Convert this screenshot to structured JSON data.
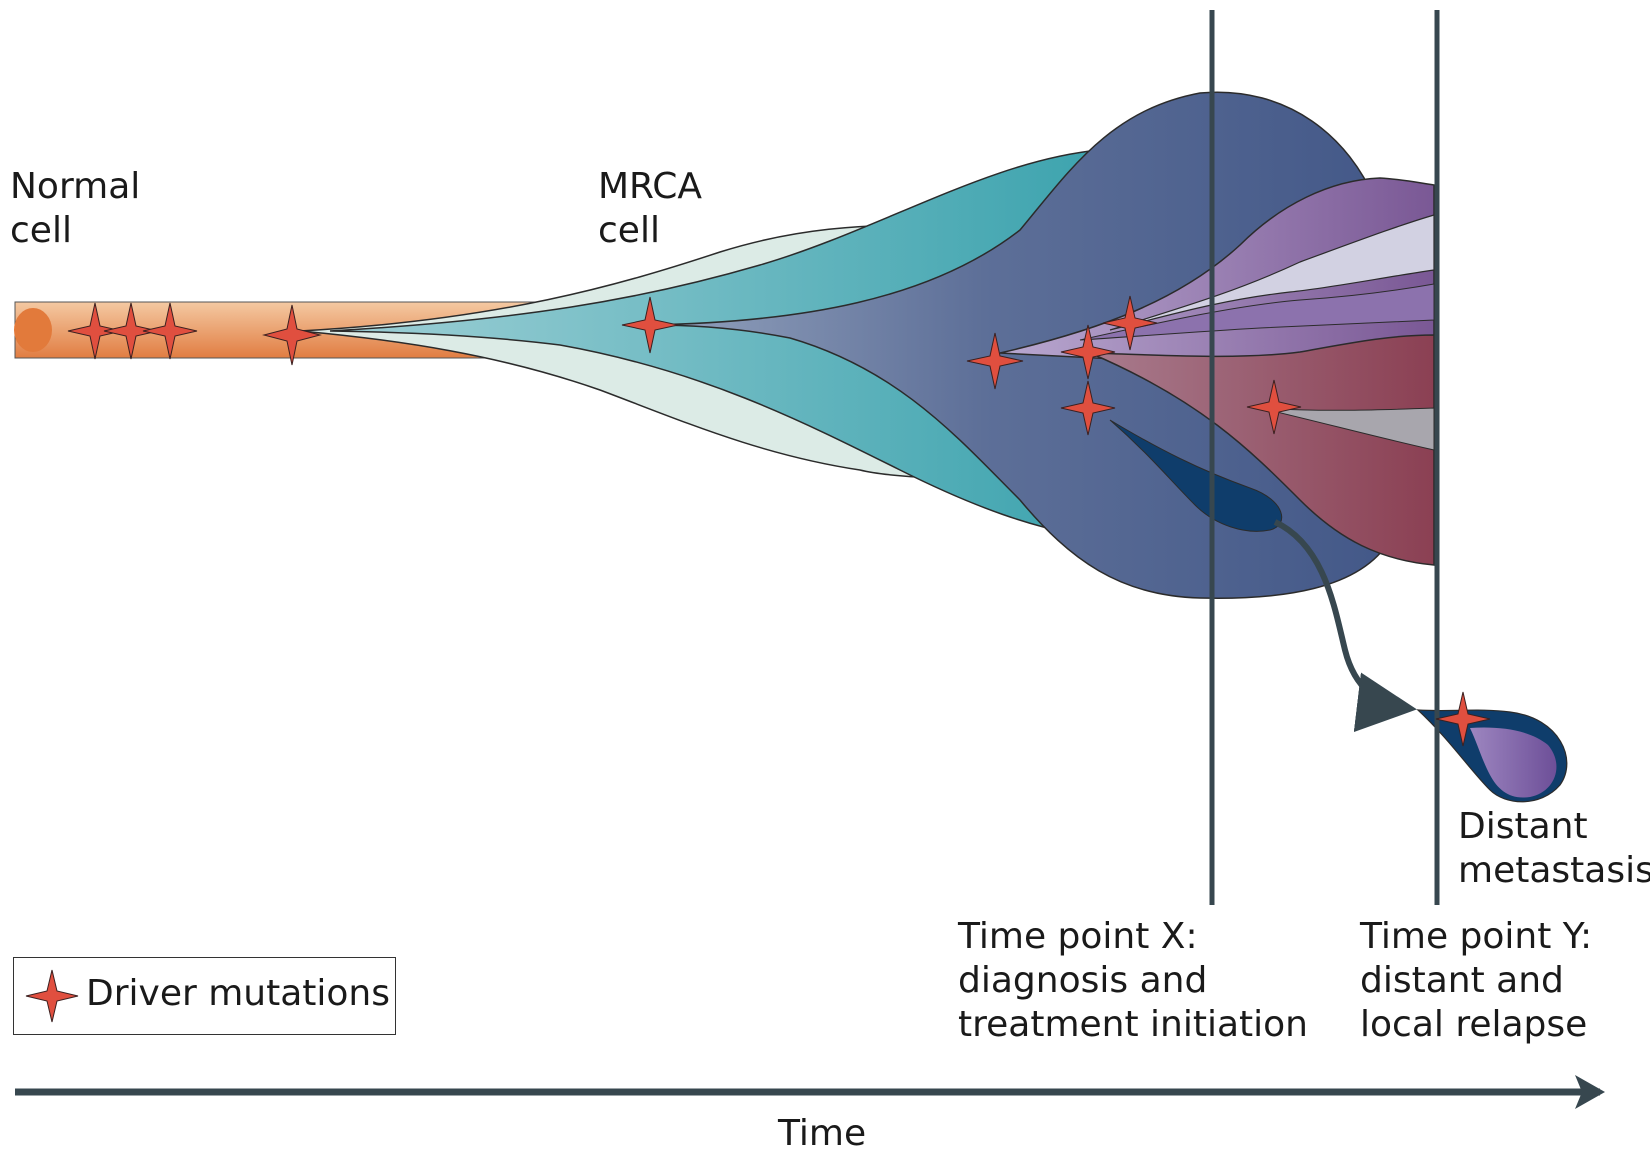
{
  "labels": {
    "normal_cell": "Normal\ncell",
    "mrca_cell": "MRCA\ncell",
    "time_point_x": "Time point X:\ndiagnosis and\ntreatment initiation",
    "time_point_y": "Time point Y:\ndistant and\nlocal relapse",
    "distant_metastasis": "Distant\nmetastasis",
    "time_axis": "Time"
  },
  "legend": {
    "driver_mutations": "Driver mutations"
  },
  "colors": {
    "normal": "#e89a63",
    "pale": "#dcebe6",
    "teal": "#4aaab4",
    "blue": "#4b6291",
    "purple": "#7e5c9a",
    "lavender": "#cfcfe0",
    "maroon": "#8e4556",
    "grey": "#a8a6ad",
    "navy": "#0f3d6b",
    "star": "#e04f3f",
    "line": "#37474f"
  }
}
